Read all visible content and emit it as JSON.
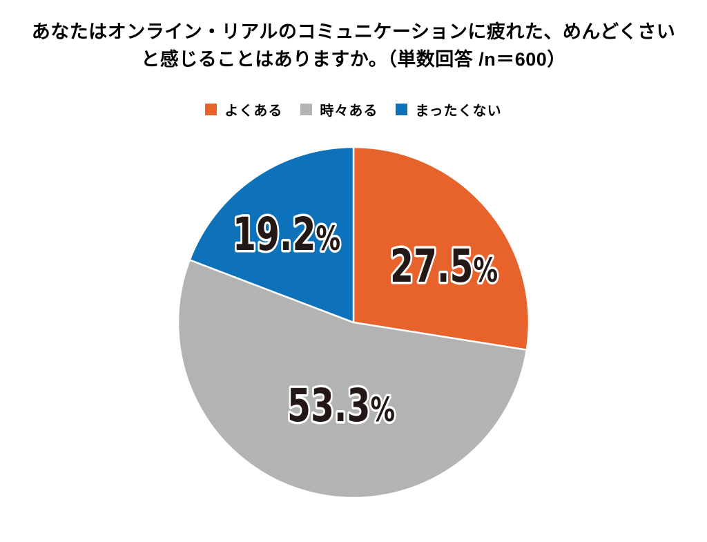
{
  "title": {
    "line1": "あなたはオンライン・リアルのコミュニケーションに疲れた、めんどくさい",
    "line2": "と感じることはありますか。（単数回答 /n＝600）"
  },
  "chart_data": {
    "type": "pie",
    "title": "あなたはオンライン・リアルのコミュニケーションに疲れた、めんどくさいと感じることはありますか。（単数回答 /n＝600）",
    "n": 600,
    "unit": "%",
    "value_suffix": "%",
    "start_angle_deg": 0,
    "direction": "clockwise",
    "legend_position": "top-center",
    "background_color": "#FFFFFF",
    "separator_color": "#FFFFFF",
    "label_style": {
      "text_color": "#231815",
      "outline_color": "#FFFFFF"
    },
    "slices": [
      {
        "label": "よくある",
        "value": 27.5,
        "display_value": "27.5",
        "color": "#E8622C"
      },
      {
        "label": "時々ある",
        "value": 53.3,
        "display_value": "53.3",
        "color": "#B3B3B3"
      },
      {
        "label": "まったくない",
        "value": 19.2,
        "display_value": "19.2",
        "color": "#0D72B9"
      }
    ]
  }
}
